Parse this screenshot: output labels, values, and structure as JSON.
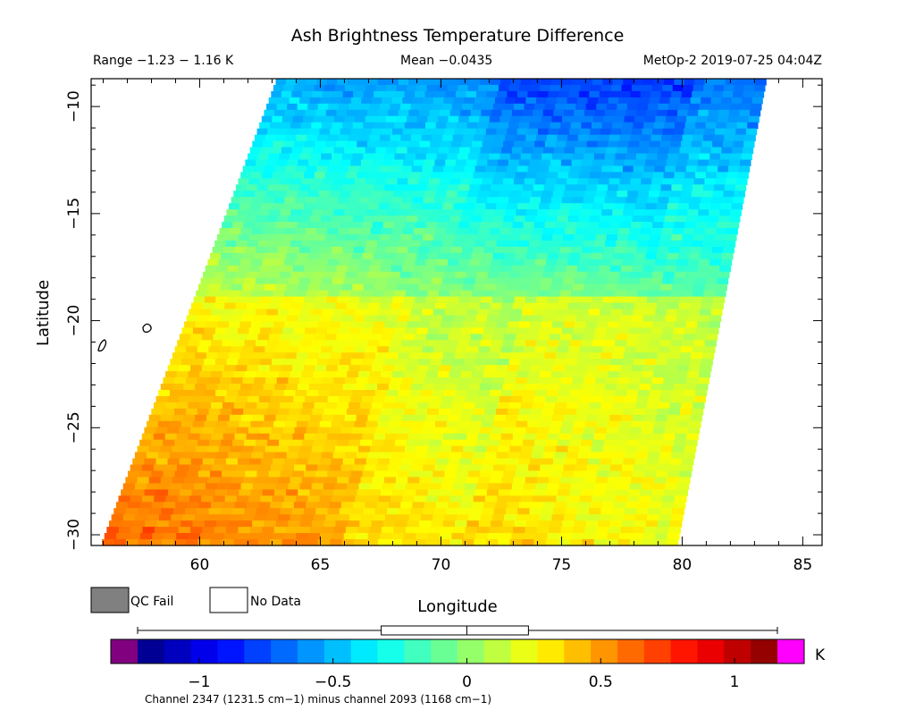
{
  "chart_data": {
    "type": "heatmap",
    "title": "Ash Brightness Temperature Difference",
    "range_text": "Range −1.23 − 1.16 K",
    "mean_text": "Mean −0.0435",
    "source_text": "MetOp-2 2019-07-25 04:04Z",
    "xlabel": "Longitude",
    "ylabel": "Latitude",
    "xlim": [
      55.5,
      85.8
    ],
    "ylim": [
      -30.5,
      -8.7
    ],
    "xticks": [
      60,
      65,
      70,
      75,
      80,
      85
    ],
    "yticks": [
      -10,
      -15,
      -20,
      -25,
      -30
    ],
    "xtick_labels": [
      "60",
      "65",
      "70",
      "75",
      "80",
      "85"
    ],
    "ytick_labels": [
      "−10",
      "−15",
      "−20",
      "−25",
      "−30"
    ],
    "swath": {
      "top_lon_range": [
        63.2,
        83.5
      ],
      "bottom_lon_range": [
        55.9,
        79.8
      ],
      "lat_range": [
        -30.5,
        -8.7
      ]
    },
    "colorbar": {
      "min": -1.23,
      "max": 1.16,
      "unit": "K",
      "ticks": [
        -1,
        -0.5,
        0,
        0.5,
        1
      ],
      "tick_labels": [
        "−1",
        "−0.5",
        "0",
        "0.5",
        "1"
      ],
      "boxplot": {
        "whisker_low": -1.23,
        "q1": -0.32,
        "median": 0.0,
        "q3": 0.23,
        "whisker_high": 1.16
      },
      "under_color": "#800080",
      "over_color": "#ff00ff"
    },
    "legend": [
      {
        "label": "QC Fail",
        "color": "#808080"
      },
      {
        "label": "No Data",
        "color": "#ffffff"
      }
    ],
    "footnote": "Channel 2347 (1231.5 cm−1) minus channel 2093 (1168 cm−1)"
  }
}
